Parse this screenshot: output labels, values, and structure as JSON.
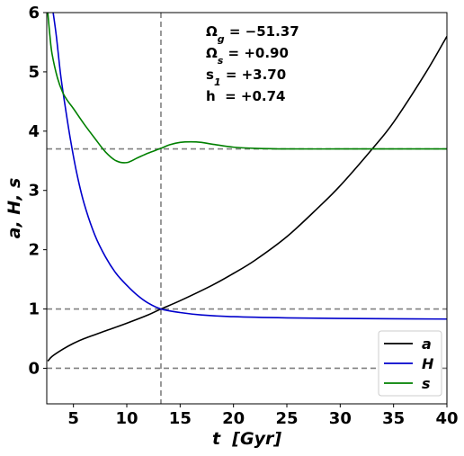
{
  "chart_data": {
    "type": "line",
    "xlabel": "t  [Gyr]",
    "ylabel": "a, H, s",
    "xlim": [
      2.5,
      40
    ],
    "ylim": [
      -0.6,
      6
    ],
    "x_ticks": [
      5,
      10,
      15,
      20,
      25,
      30,
      35,
      40
    ],
    "y_ticks": [
      0,
      1,
      2,
      3,
      4,
      5,
      6
    ],
    "grid": false,
    "legend_position": "lower-right",
    "reference_lines": {
      "horizontal": [
        0,
        1,
        3.7
      ],
      "vertical": [
        13.2
      ],
      "color": "#808080",
      "style": "dashed"
    },
    "annotations": [
      "Ω_g = −51.37",
      "Ω_s = +0.90",
      "s_1 = +3.70",
      "h  = +0.74"
    ],
    "series": [
      {
        "name": "a",
        "color": "#000000",
        "x": [
          2.6,
          3,
          4,
          5,
          6,
          8,
          10,
          12,
          13.2,
          15,
          18,
          20,
          22,
          25,
          28,
          30,
          33,
          35,
          38,
          40
        ],
        "y": [
          0.12,
          0.2,
          0.32,
          0.42,
          0.5,
          0.63,
          0.76,
          0.9,
          1.0,
          1.14,
          1.4,
          1.6,
          1.82,
          2.22,
          2.72,
          3.08,
          3.7,
          4.15,
          4.98,
          5.6
        ]
      },
      {
        "name": "H",
        "color": "#0000cc",
        "x": [
          3.1,
          3.4,
          3.8,
          4.2,
          4.7,
          5.3,
          6,
          7,
          8,
          9,
          10,
          11,
          12,
          13.2,
          15,
          17,
          20,
          25,
          30,
          35,
          40
        ],
        "y": [
          6.0,
          5.6,
          4.95,
          4.45,
          3.88,
          3.3,
          2.78,
          2.25,
          1.88,
          1.6,
          1.4,
          1.23,
          1.1,
          1.0,
          0.94,
          0.9,
          0.87,
          0.85,
          0.84,
          0.835,
          0.83
        ],
        "y_as_printed_start": 6.0
      },
      {
        "name": "s",
        "color": "#008000",
        "x": [
          2.6,
          2.8,
          3,
          3.5,
          4,
          4.5,
          5,
          6,
          7,
          8,
          9,
          10,
          11,
          12,
          13.2,
          14,
          15,
          16,
          17,
          18,
          20,
          22,
          25,
          30,
          35,
          40
        ],
        "y": [
          6.0,
          5.6,
          5.3,
          4.9,
          4.65,
          4.5,
          4.38,
          4.12,
          3.88,
          3.65,
          3.5,
          3.47,
          3.55,
          3.63,
          3.71,
          3.77,
          3.81,
          3.82,
          3.81,
          3.78,
          3.73,
          3.71,
          3.7,
          3.7,
          3.7,
          3.7
        ]
      }
    ]
  }
}
